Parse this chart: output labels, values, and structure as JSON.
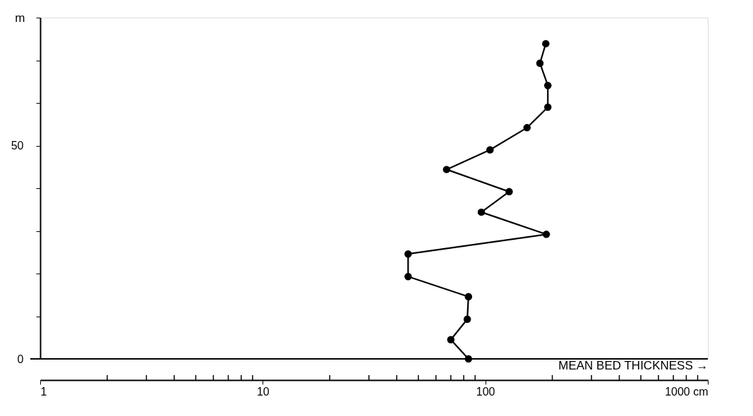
{
  "chart_data": {
    "type": "line",
    "xlabel": "MEAN BED THICKNESS →",
    "ylabel": "m",
    "log": "x",
    "marker": "circle",
    "line_style": "solid",
    "grid": false,
    "xlim": [
      1,
      1000
    ],
    "ylim": [
      0,
      80
    ],
    "xticks": [
      1,
      10,
      100,
      {
        "value": 1000,
        "label": "1000 cm"
      }
    ],
    "yticks": [
      0,
      {
        "value": 10,
        "label": null
      },
      {
        "value": 20,
        "label": null
      },
      {
        "value": 30,
        "label": null
      },
      {
        "value": 40,
        "label": null
      },
      50,
      {
        "value": 60,
        "label": null
      },
      {
        "value": 70,
        "label": null
      },
      {
        "value": 80,
        "label": null
      }
    ],
    "ref_lines": [
      {
        "axis": "y",
        "value": 0,
        "color": "#000000"
      }
    ],
    "series": [
      {
        "color": "#000000",
        "x": [
          84,
          70,
          83,
          84,
          45,
          45,
          188,
          96,
          128,
          67,
          105,
          154,
          191,
          191,
          176,
          187
        ],
        "values": [
          0,
          4.5,
          9.3,
          14.6,
          19.3,
          24.6,
          29.2,
          34.4,
          39.2,
          44.4,
          49,
          54.2,
          59,
          64.1,
          69.3,
          73.9
        ]
      }
    ]
  }
}
